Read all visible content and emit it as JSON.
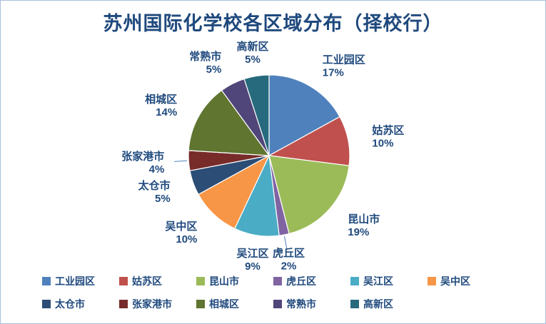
{
  "page": {
    "frame_border_color": "#A9C0DC",
    "background_color": "#FFFFFF"
  },
  "chart_data": {
    "type": "pie",
    "title": "苏州国际化学校各区域分布（择校行）",
    "title_color": "#1F497D",
    "label_color": "#1F497D",
    "leader_color": "#4F81BD",
    "legend_position": "bottom",
    "start_angle_deg": 0,
    "direction": "clockwise",
    "unit": "%",
    "series": [
      {
        "label": "工业园区",
        "value": 17,
        "percent_label": "17%",
        "color": "#4F81BD"
      },
      {
        "label": "姑苏区",
        "value": 10,
        "percent_label": "10%",
        "color": "#C0504D"
      },
      {
        "label": "昆山市",
        "value": 19,
        "percent_label": "19%",
        "color": "#9BBB59"
      },
      {
        "label": "虎丘区",
        "value": 2,
        "percent_label": "2%",
        "color": "#8064A2"
      },
      {
        "label": "吴江区",
        "value": 9,
        "percent_label": "9%",
        "color": "#4BACC6"
      },
      {
        "label": "吴中区",
        "value": 10,
        "percent_label": "10%",
        "color": "#F79646"
      },
      {
        "label": "太仓市",
        "value": 5,
        "percent_label": "5%",
        "color": "#2C4D75"
      },
      {
        "label": "张家港市",
        "value": 4,
        "percent_label": "4%",
        "color": "#772C2A"
      },
      {
        "label": "相城区",
        "value": 14,
        "percent_label": "14%",
        "color": "#5F7530"
      },
      {
        "label": "常熟市",
        "value": 5,
        "percent_label": "5%",
        "color": "#514679"
      },
      {
        "label": "高新区",
        "value": 5,
        "percent_label": "5%",
        "color": "#276A7D"
      }
    ]
  }
}
